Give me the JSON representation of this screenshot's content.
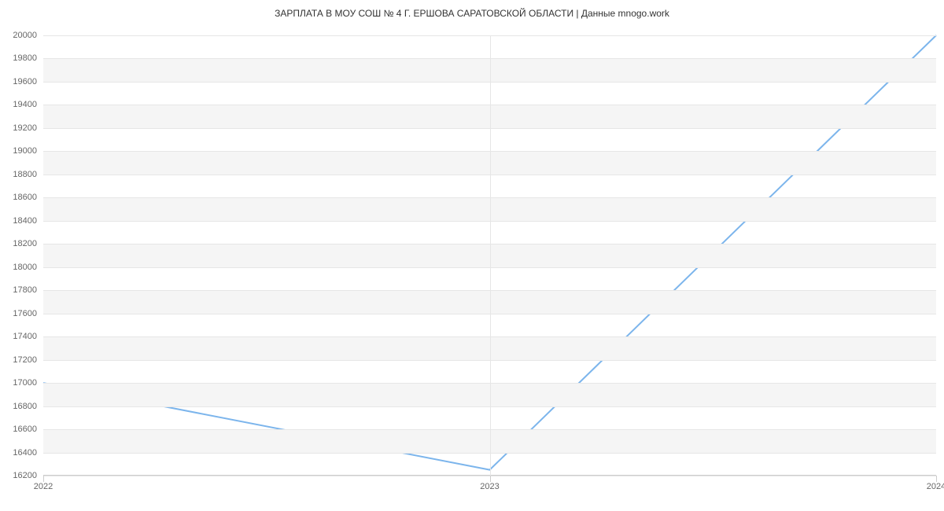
{
  "chart": {
    "type": "line",
    "title": "ЗАРПЛАТА В МОУ СОШ № 4 Г. ЕРШОВА САРАТОВСКОЙ ОБЛАСТИ | Данные mnogo.work",
    "title_fontsize": 12,
    "title_color": "#333333",
    "background_color": "#ffffff",
    "band_color": "#f5f5f5",
    "grid_color": "#e6e6e6",
    "axis_color": "#cccccc",
    "tick_label_color": "#666666",
    "tick_label_fontsize": 11,
    "line_color": "#7cb5ec",
    "line_width": 2,
    "x": {
      "ticks": [
        2022,
        2023,
        2024
      ],
      "min": 2022,
      "max": 2024
    },
    "y": {
      "min": 16200,
      "max": 20000,
      "tick_step": 200,
      "ticks": [
        16200,
        16400,
        16600,
        16800,
        17000,
        17200,
        17400,
        17600,
        17800,
        18000,
        18200,
        18400,
        18600,
        18800,
        19000,
        19200,
        19400,
        19600,
        19800,
        20000
      ]
    },
    "series": [
      {
        "x": 2022,
        "y": 17000
      },
      {
        "x": 2023,
        "y": 16250
      },
      {
        "x": 2024,
        "y": 20000
      }
    ]
  }
}
